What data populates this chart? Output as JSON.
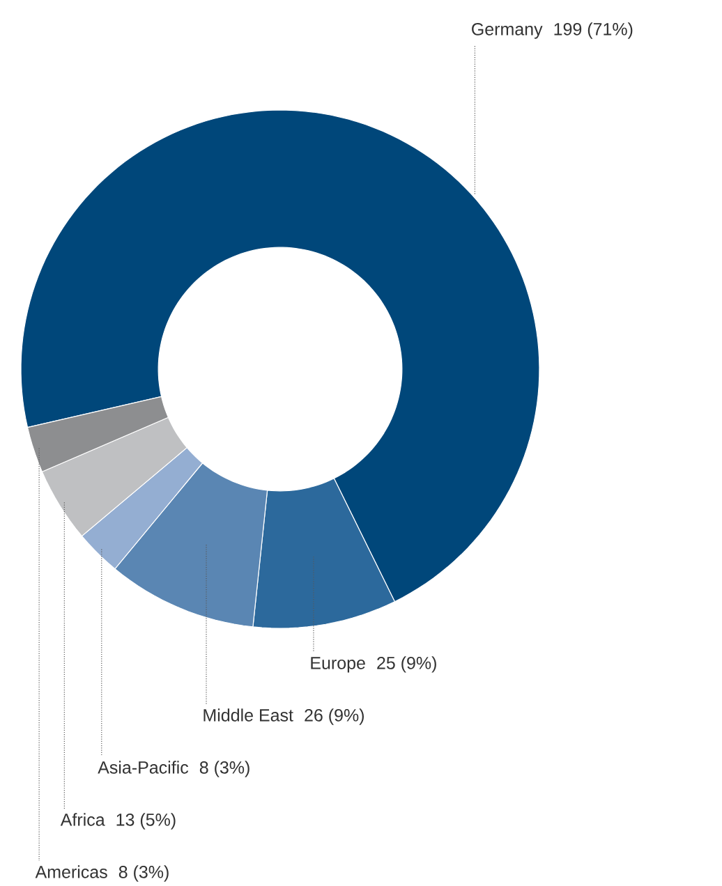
{
  "chart_data": {
    "type": "donut",
    "categories": [
      "Germany",
      "Europe",
      "Middle East",
      "Asia-Pacific",
      "Africa",
      "Americas"
    ],
    "values": [
      199,
      25,
      26,
      8,
      13,
      8
    ],
    "value_labels": [
      "199 (71%)",
      "25 (9%)",
      "26 (9%)",
      "8 (3%)",
      "13 (5%)",
      "8 (3%)"
    ],
    "colors": [
      "#00477a",
      "#2c699c",
      "#5a86b3",
      "#94aed2",
      "#bfc0c2",
      "#8d8e90"
    ]
  }
}
